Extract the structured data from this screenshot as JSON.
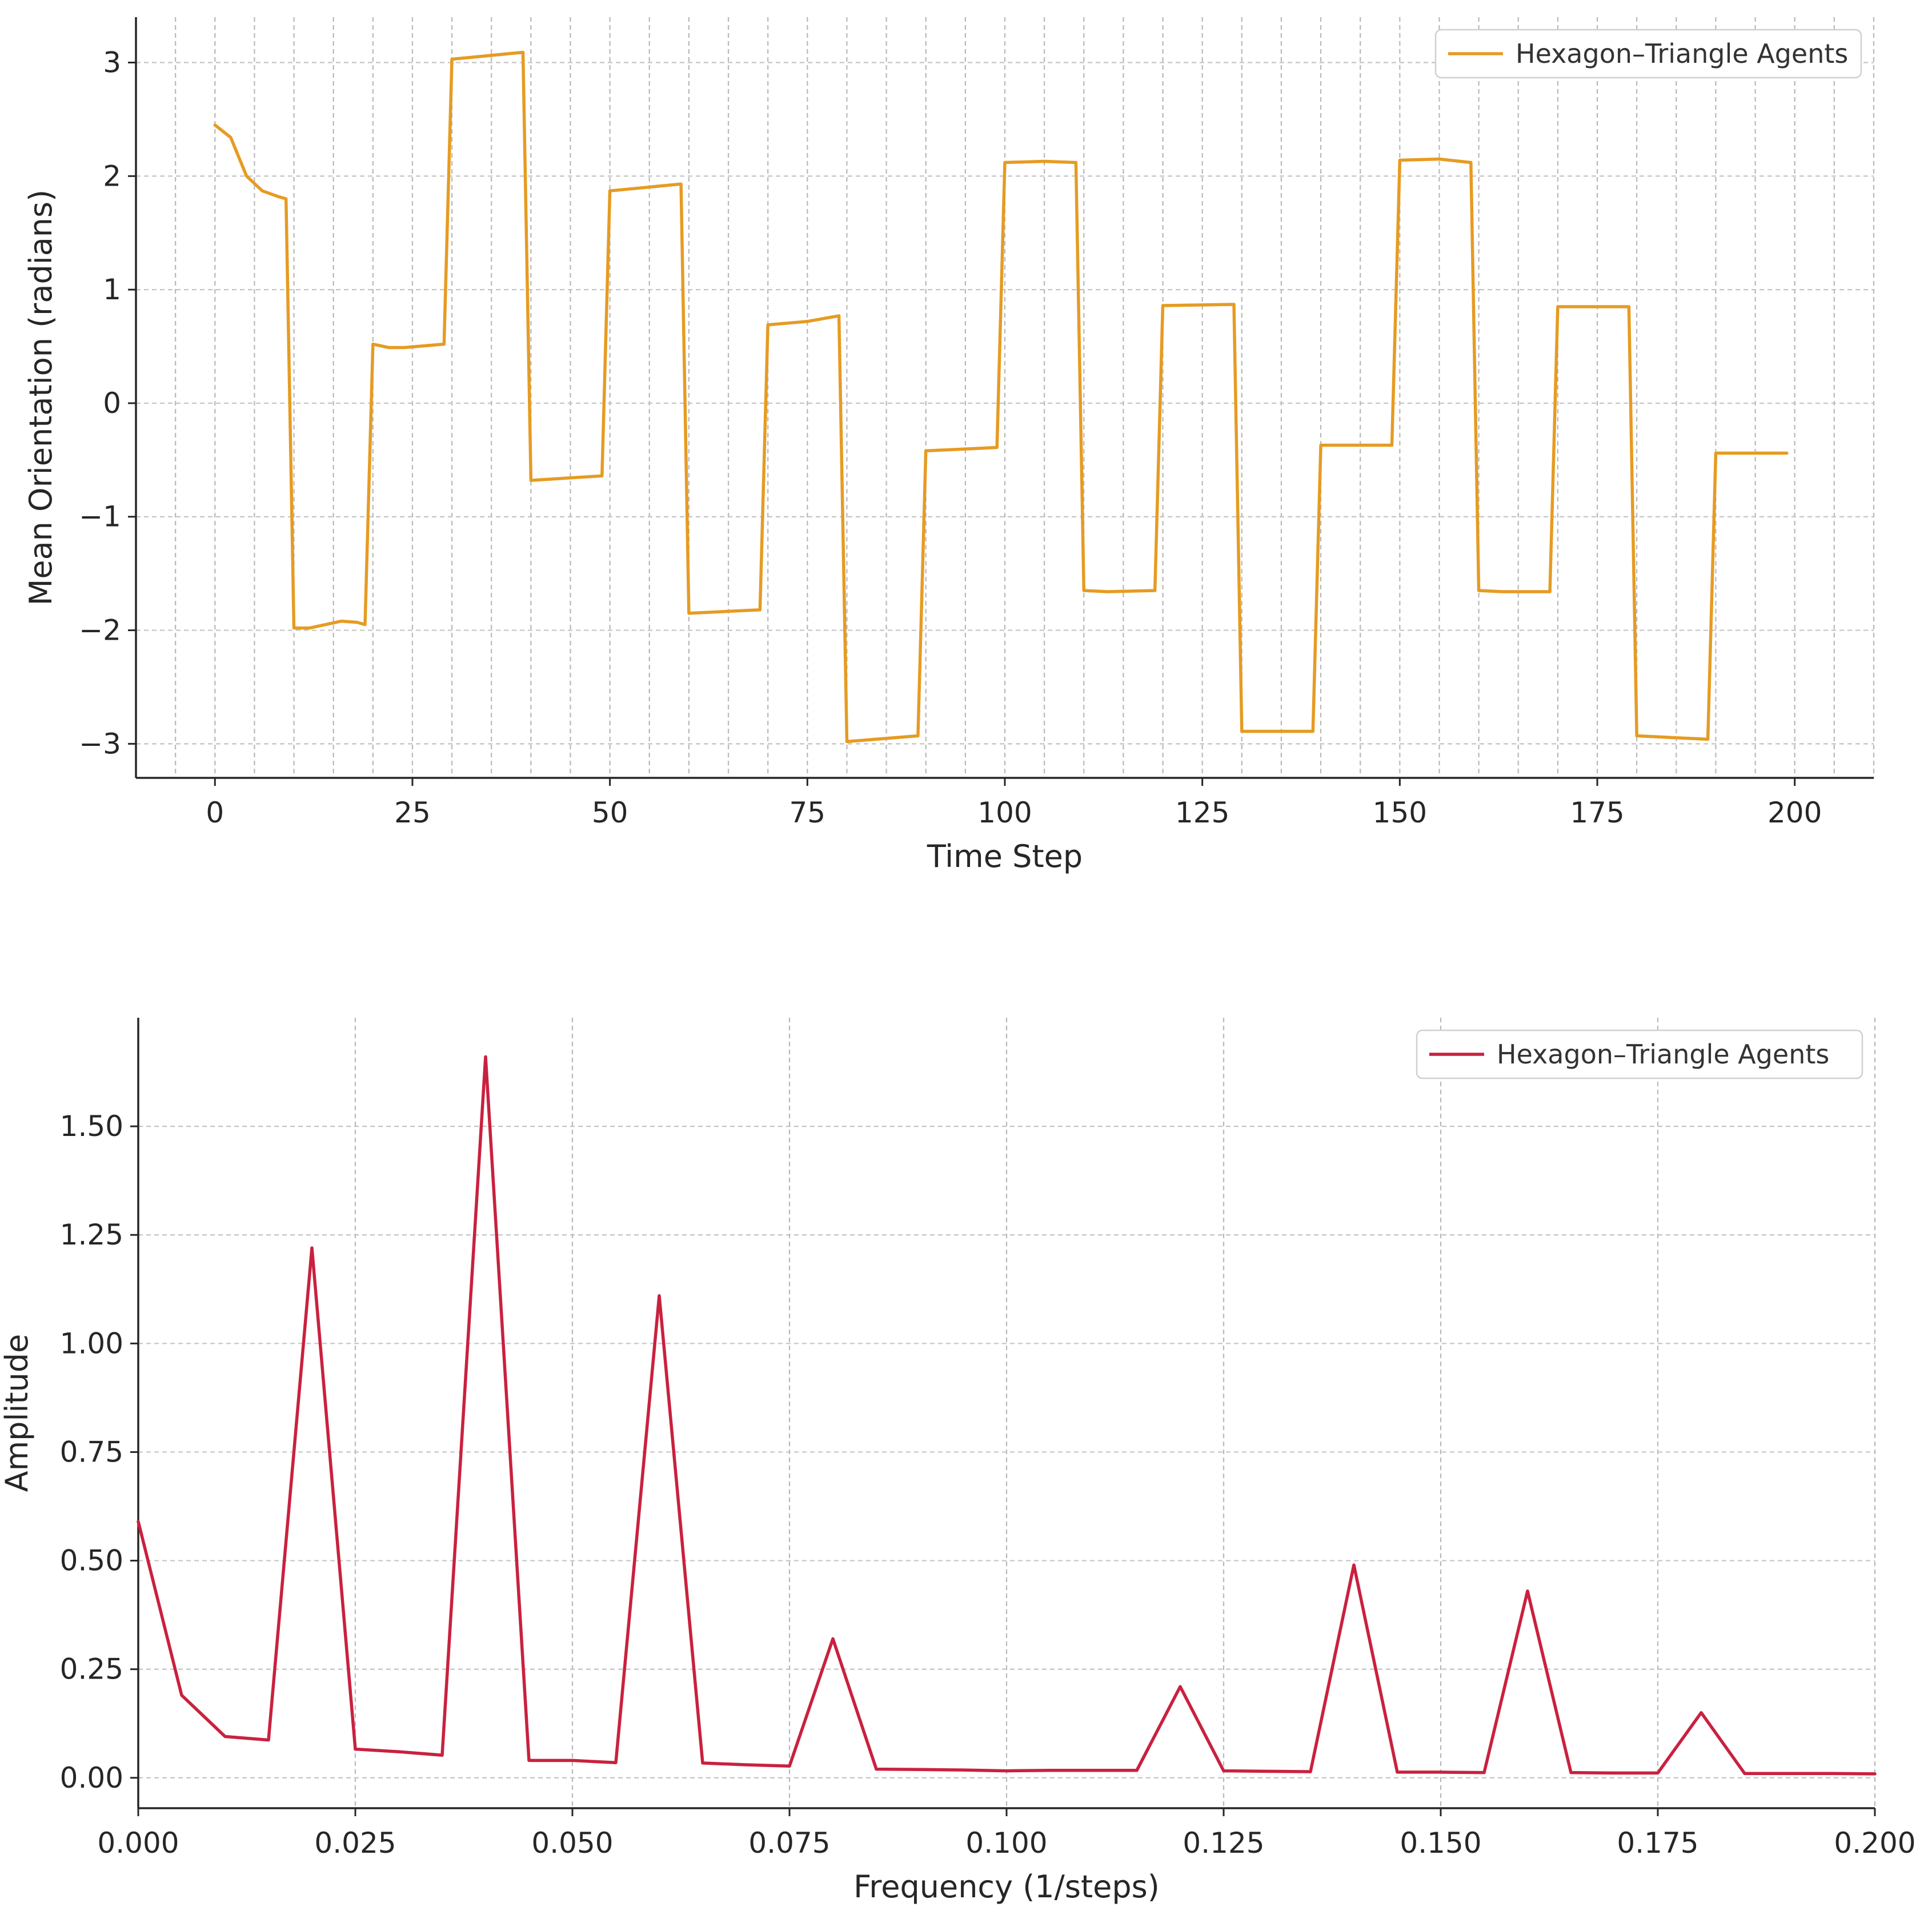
{
  "chart_data": [
    {
      "type": "line",
      "xlabel": "Time Step",
      "ylabel": "Mean Orientation (radians)",
      "xlim": [
        -10,
        210
      ],
      "ylim": [
        -3.3,
        3.4
      ],
      "xticks": [
        0,
        25,
        50,
        75,
        100,
        125,
        150,
        175,
        200
      ],
      "xtick_labels": [
        "0",
        "25",
        "50",
        "75",
        "100",
        "125",
        "150",
        "175",
        "200"
      ],
      "yticks": [
        -3,
        -2,
        -1,
        0,
        1,
        2,
        3
      ],
      "ytick_labels": [
        "−3",
        "−2",
        "−1",
        "0",
        "1",
        "2",
        "3"
      ],
      "x_grid_step": 5,
      "grid": true,
      "grid_style": "dashed",
      "legend": "top-right",
      "series": [
        {
          "name": "Hexagon–Triangle Agents",
          "color": "#e69b22",
          "points": [
            [
              0,
              2.45
            ],
            [
              2,
              2.34
            ],
            [
              4,
              2.0
            ],
            [
              6,
              1.87
            ],
            [
              8,
              1.82
            ],
            [
              9,
              1.8
            ],
            [
              10,
              -1.98
            ],
            [
              12,
              -1.98
            ],
            [
              16,
              -1.92
            ],
            [
              18,
              -1.93
            ],
            [
              19,
              -1.95
            ],
            [
              20,
              0.52
            ],
            [
              22,
              0.49
            ],
            [
              24,
              0.49
            ],
            [
              29,
              0.52
            ],
            [
              30,
              3.03
            ],
            [
              39,
              3.09
            ],
            [
              40,
              -0.68
            ],
            [
              49,
              -0.64
            ],
            [
              50,
              1.87
            ],
            [
              59,
              1.93
            ],
            [
              60,
              -1.85
            ],
            [
              69,
              -1.82
            ],
            [
              70,
              0.69
            ],
            [
              75,
              0.72
            ],
            [
              79,
              0.77
            ],
            [
              80,
              -2.98
            ],
            [
              89,
              -2.93
            ],
            [
              90,
              -0.42
            ],
            [
              99,
              -0.39
            ],
            [
              100,
              2.12
            ],
            [
              105,
              2.13
            ],
            [
              109,
              2.12
            ],
            [
              110,
              -1.65
            ],
            [
              113,
              -1.66
            ],
            [
              119,
              -1.65
            ],
            [
              120,
              0.86
            ],
            [
              129,
              0.87
            ],
            [
              130,
              -2.89
            ],
            [
              139,
              -2.89
            ],
            [
              140,
              -0.37
            ],
            [
              149,
              -0.37
            ],
            [
              150,
              2.14
            ],
            [
              155,
              2.15
            ],
            [
              159,
              2.12
            ],
            [
              160,
              -1.65
            ],
            [
              163,
              -1.66
            ],
            [
              169,
              -1.66
            ],
            [
              170,
              0.85
            ],
            [
              179,
              0.85
            ],
            [
              180,
              -2.93
            ],
            [
              189,
              -2.96
            ],
            [
              190,
              -0.44
            ],
            [
              199,
              -0.44
            ]
          ]
        }
      ]
    },
    {
      "type": "line",
      "xlabel": "Frequency (1/steps)",
      "ylabel": "Amplitude",
      "xlim": [
        0.0,
        0.2
      ],
      "ylim": [
        -0.07,
        1.75
      ],
      "xticks": [
        0.0,
        0.025,
        0.05,
        0.075,
        0.1,
        0.125,
        0.15,
        0.175,
        0.2
      ],
      "xtick_labels": [
        "0.000",
        "0.025",
        "0.050",
        "0.075",
        "0.100",
        "0.125",
        "0.150",
        "0.175",
        "0.200"
      ],
      "yticks": [
        0.0,
        0.25,
        0.5,
        0.75,
        1.0,
        1.25,
        1.5
      ],
      "ytick_labels": [
        "0.00",
        "0.25",
        "0.50",
        "0.75",
        "1.00",
        "1.25",
        "1.50"
      ],
      "grid": true,
      "grid_style": "dashed",
      "legend": "top-right",
      "series": [
        {
          "name": "Hexagon–Triangle Agents",
          "color": "#c9213f",
          "points": [
            [
              0.0,
              0.59
            ],
            [
              0.005,
              0.19
            ],
            [
              0.01,
              0.095
            ],
            [
              0.015,
              0.087
            ],
            [
              0.02,
              1.22
            ],
            [
              0.025,
              0.066
            ],
            [
              0.03,
              0.06
            ],
            [
              0.035,
              0.052
            ],
            [
              0.04,
              1.66
            ],
            [
              0.045,
              0.04
            ],
            [
              0.05,
              0.04
            ],
            [
              0.055,
              0.035
            ],
            [
              0.06,
              1.11
            ],
            [
              0.065,
              0.034
            ],
            [
              0.07,
              0.03
            ],
            [
              0.075,
              0.027
            ],
            [
              0.08,
              0.32
            ],
            [
              0.085,
              0.02
            ],
            [
              0.09,
              0.019
            ],
            [
              0.095,
              0.018
            ],
            [
              0.1,
              0.016
            ],
            [
              0.105,
              0.017
            ],
            [
              0.11,
              0.017
            ],
            [
              0.115,
              0.017
            ],
            [
              0.12,
              0.21
            ],
            [
              0.125,
              0.016
            ],
            [
              0.13,
              0.015
            ],
            [
              0.135,
              0.014
            ],
            [
              0.14,
              0.49
            ],
            [
              0.145,
              0.013
            ],
            [
              0.15,
              0.013
            ],
            [
              0.155,
              0.012
            ],
            [
              0.16,
              0.43
            ],
            [
              0.165,
              0.012
            ],
            [
              0.17,
              0.011
            ],
            [
              0.175,
              0.011
            ],
            [
              0.18,
              0.15
            ],
            [
              0.185,
              0.01
            ],
            [
              0.19,
              0.01
            ],
            [
              0.195,
              0.01
            ],
            [
              0.2,
              0.009
            ]
          ]
        }
      ]
    }
  ]
}
